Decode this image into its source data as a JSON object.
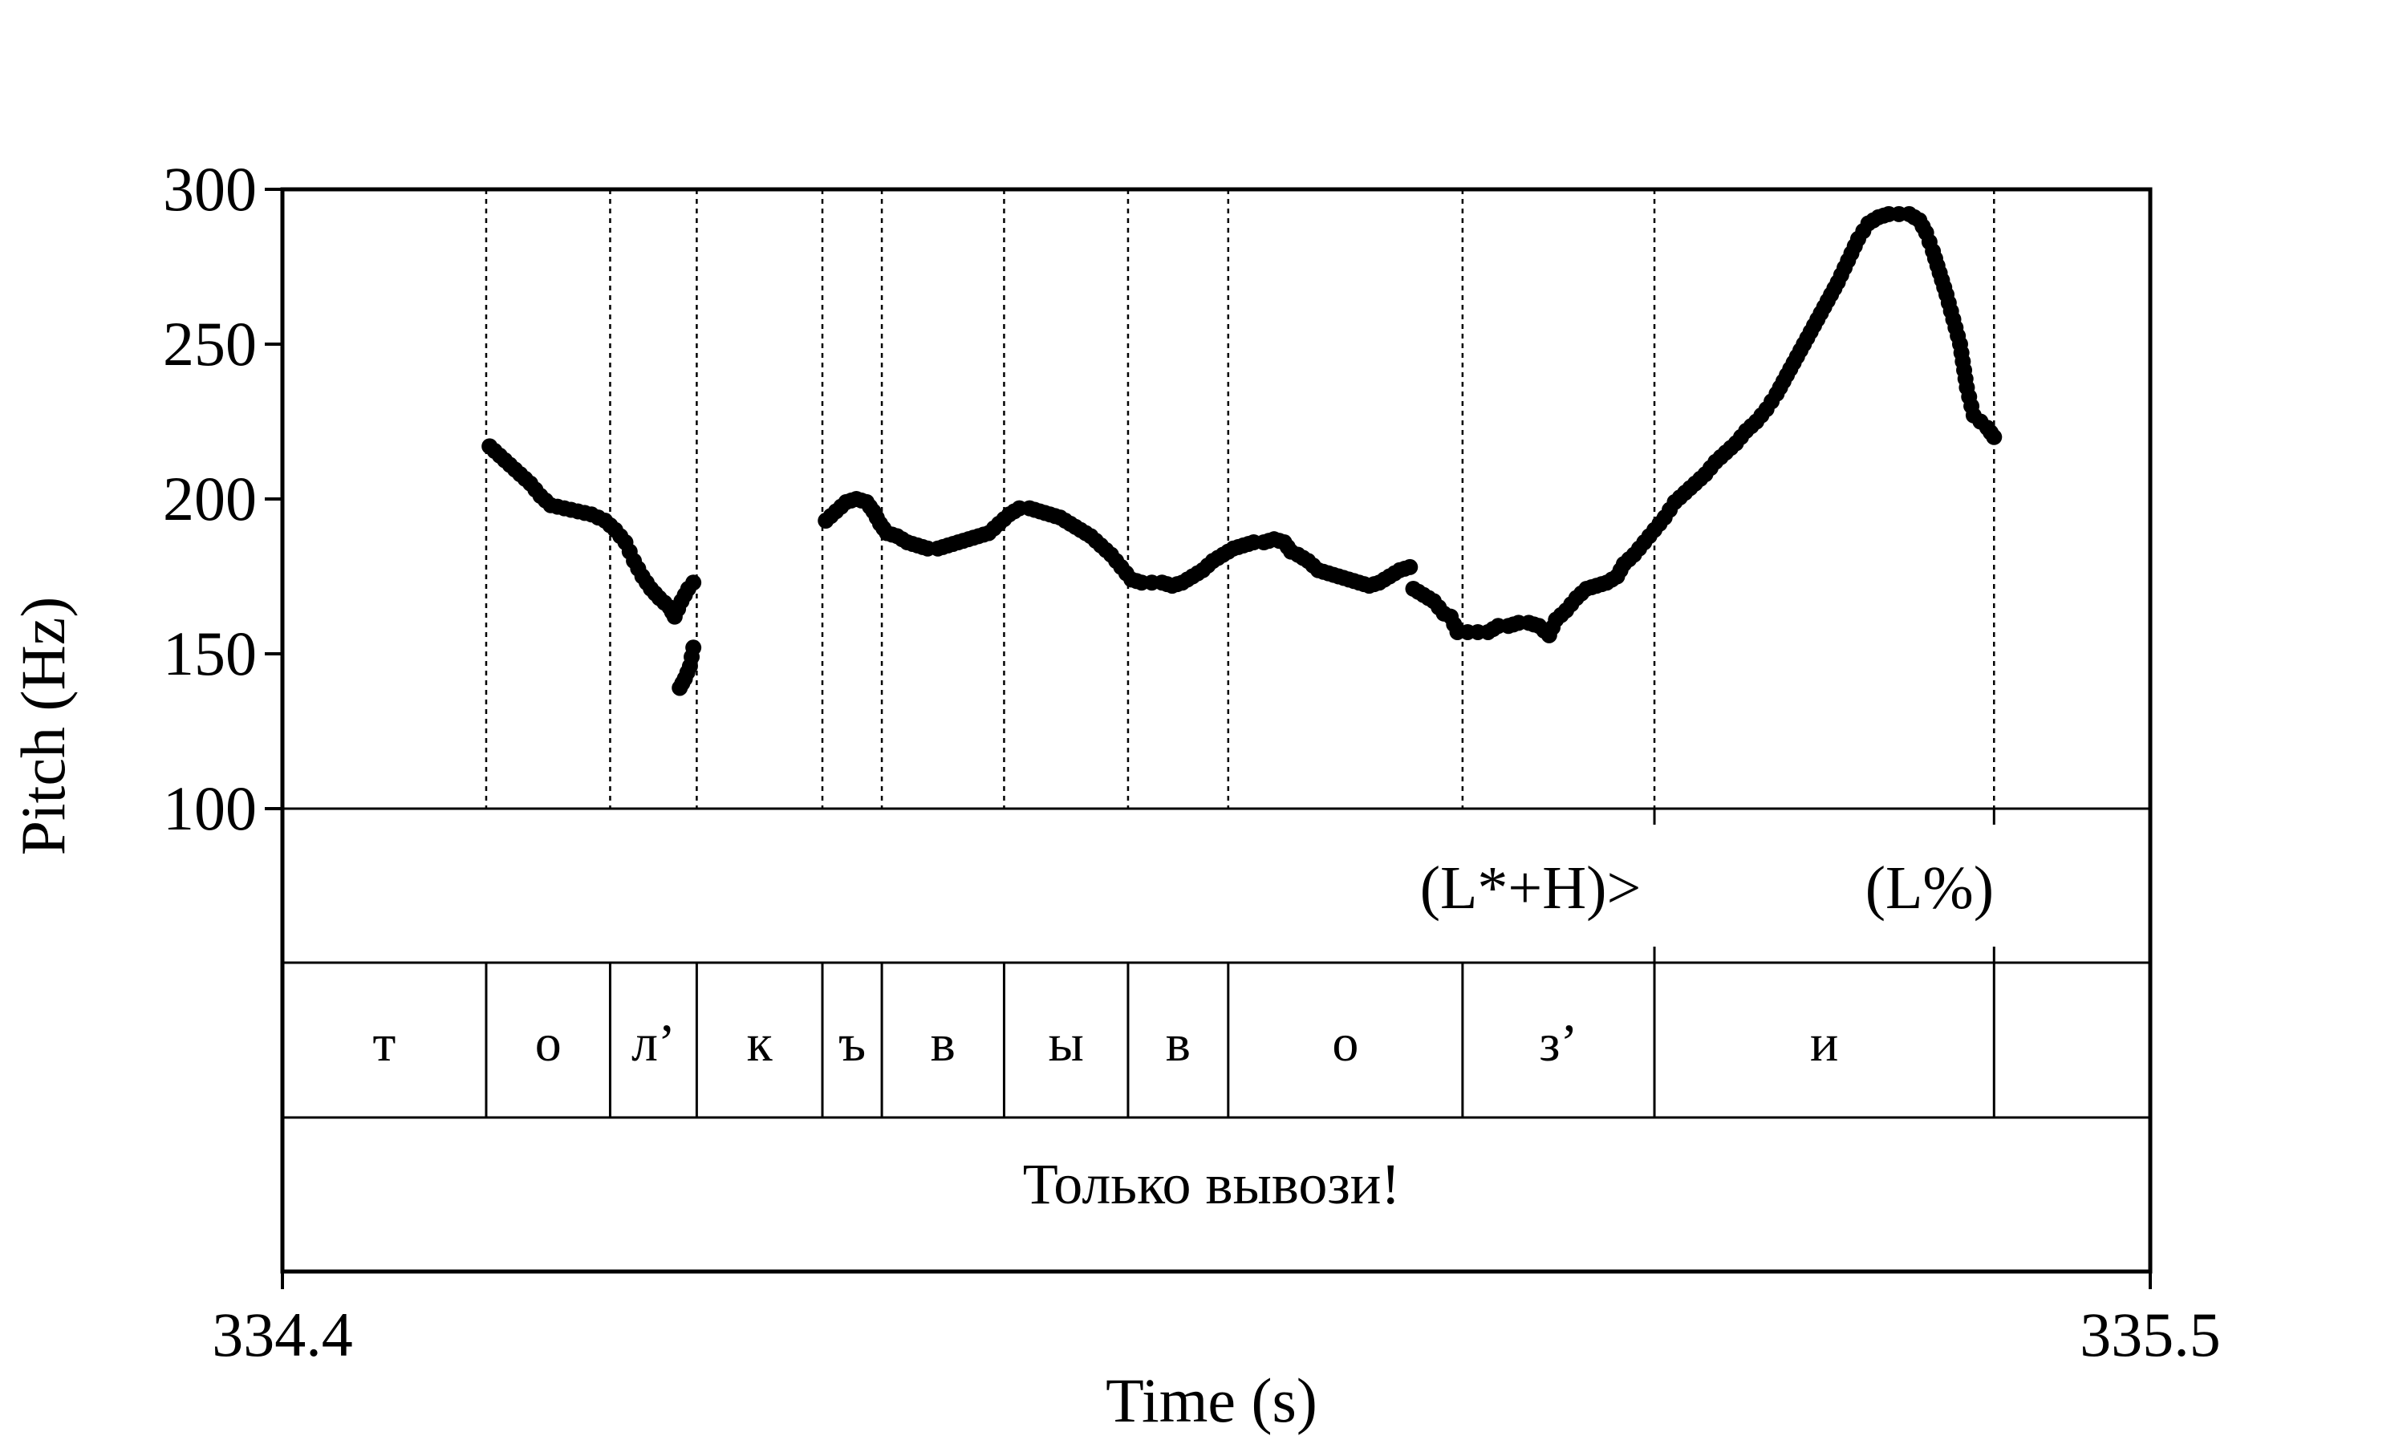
{
  "chart_data": {
    "type": "scatter",
    "xlabel": "Time (s)",
    "ylabel": "Pitch (Hz)",
    "xlim": [
      334.4,
      335.5
    ],
    "ylim": [
      100,
      300
    ],
    "x_tick_labels": [
      "334.4",
      "335.5"
    ],
    "y_ticks": [
      100,
      150,
      200,
      250,
      300
    ],
    "grid": false,
    "marker_color": "#000000",
    "boundaries": [
      334.52,
      334.593,
      334.644,
      334.718,
      334.753,
      334.825,
      334.898,
      334.957,
      335.095,
      335.208,
      335.408
    ],
    "segments": [
      {
        "label": "т",
        "start": 334.4,
        "end": 334.52
      },
      {
        "label": "о",
        "start": 334.52,
        "end": 334.593
      },
      {
        "label": "л’",
        "start": 334.593,
        "end": 334.644
      },
      {
        "label": "к",
        "start": 334.644,
        "end": 334.718
      },
      {
        "label": "ъ",
        "start": 334.718,
        "end": 334.753
      },
      {
        "label": "в",
        "start": 334.753,
        "end": 334.825
      },
      {
        "label": "ы",
        "start": 334.825,
        "end": 334.898
      },
      {
        "label": "в",
        "start": 334.898,
        "end": 334.957
      },
      {
        "label": "о",
        "start": 334.957,
        "end": 335.095
      },
      {
        "label": "з’",
        "start": 335.095,
        "end": 335.208
      },
      {
        "label": "и",
        "start": 335.208,
        "end": 335.408
      }
    ],
    "tones": [
      {
        "label": "(L*+H)>",
        "time": 335.208,
        "center": 335.135
      },
      {
        "label": "(L%)",
        "time": 335.408,
        "center": 335.37
      }
    ],
    "utterance": "Только вывози!",
    "pitch_contours": [
      [
        [
          334.522,
          217
        ],
        [
          334.528,
          214
        ],
        [
          334.534,
          211
        ],
        [
          334.54,
          208
        ],
        [
          334.546,
          205
        ],
        [
          334.552,
          201
        ],
        [
          334.558,
          198
        ],
        [
          334.566,
          197
        ],
        [
          334.574,
          196
        ],
        [
          334.582,
          195
        ],
        [
          334.59,
          193
        ],
        [
          334.596,
          190
        ],
        [
          334.602,
          186
        ],
        [
          334.607,
          180
        ],
        [
          334.612,
          175
        ],
        [
          334.617,
          171
        ],
        [
          334.622,
          168
        ],
        [
          334.628,
          165
        ],
        [
          334.631,
          162
        ],
        [
          334.635,
          167
        ],
        [
          334.639,
          171
        ],
        [
          334.642,
          173
        ]
      ],
      [
        [
          334.634,
          139
        ],
        [
          334.637,
          142
        ],
        [
          334.64,
          146
        ],
        [
          334.642,
          152
        ]
      ],
      [
        [
          334.72,
          193
        ],
        [
          334.726,
          196
        ],
        [
          334.732,
          199
        ],
        [
          334.738,
          200
        ],
        [
          334.744,
          199
        ],
        [
          334.748,
          196
        ],
        [
          334.752,
          192
        ],
        [
          334.756,
          189
        ],
        [
          334.762,
          188
        ],
        [
          334.768,
          186
        ],
        [
          334.774,
          185
        ],
        [
          334.78,
          184
        ],
        [
          334.786,
          184
        ],
        [
          334.792,
          185
        ],
        [
          334.798,
          186
        ],
        [
          334.804,
          187
        ],
        [
          334.81,
          188
        ],
        [
          334.816,
          189
        ],
        [
          334.822,
          192
        ],
        [
          334.828,
          195
        ],
        [
          334.834,
          197
        ],
        [
          334.84,
          197
        ],
        [
          334.846,
          196
        ],
        [
          334.852,
          195
        ],
        [
          334.858,
          194
        ],
        [
          334.864,
          192
        ],
        [
          334.87,
          190
        ],
        [
          334.876,
          188
        ],
        [
          334.882,
          185
        ],
        [
          334.888,
          182
        ],
        [
          334.894,
          178
        ],
        [
          334.9,
          174
        ],
        [
          334.906,
          173
        ],
        [
          334.912,
          173
        ],
        [
          334.918,
          173
        ],
        [
          334.924,
          172
        ],
        [
          334.93,
          173
        ],
        [
          334.936,
          175
        ],
        [
          334.942,
          177
        ],
        [
          334.948,
          180
        ],
        [
          334.954,
          182
        ],
        [
          334.96,
          184
        ],
        [
          334.966,
          185
        ],
        [
          334.972,
          186
        ],
        [
          334.978,
          186
        ],
        [
          334.984,
          187
        ],
        [
          334.99,
          186
        ],
        [
          334.994,
          183
        ],
        [
          334.998,
          182
        ],
        [
          335.004,
          180
        ],
        [
          335.01,
          177
        ],
        [
          335.016,
          176
        ],
        [
          335.022,
          175
        ],
        [
          335.028,
          174
        ],
        [
          335.034,
          173
        ],
        [
          335.04,
          172
        ],
        [
          335.046,
          173
        ],
        [
          335.052,
          175
        ],
        [
          335.058,
          177
        ],
        [
          335.064,
          178
        ]
      ],
      [
        [
          335.066,
          171
        ],
        [
          335.072,
          169
        ],
        [
          335.078,
          167
        ],
        [
          335.084,
          163
        ],
        [
          335.088,
          162
        ],
        [
          335.092,
          157
        ],
        [
          335.098,
          157
        ],
        [
          335.104,
          157
        ],
        [
          335.11,
          157
        ],
        [
          335.116,
          159
        ],
        [
          335.122,
          159
        ],
        [
          335.128,
          160
        ],
        [
          335.134,
          160
        ],
        [
          335.14,
          159
        ],
        [
          335.146,
          156
        ],
        [
          335.15,
          161
        ],
        [
          335.156,
          164
        ],
        [
          335.162,
          168
        ],
        [
          335.168,
          171
        ],
        [
          335.174,
          172
        ],
        [
          335.18,
          173
        ],
        [
          335.186,
          175
        ],
        [
          335.19,
          179
        ],
        [
          335.196,
          182
        ],
        [
          335.202,
          186
        ],
        [
          335.208,
          190
        ],
        [
          335.214,
          194
        ],
        [
          335.22,
          199
        ],
        [
          335.226,
          202
        ],
        [
          335.232,
          205
        ],
        [
          335.238,
          208
        ],
        [
          335.244,
          212
        ],
        [
          335.25,
          215
        ],
        [
          335.256,
          218
        ],
        [
          335.262,
          222
        ],
        [
          335.268,
          225
        ],
        [
          335.274,
          229
        ],
        [
          335.28,
          234
        ],
        [
          335.286,
          240
        ],
        [
          335.292,
          246
        ],
        [
          335.298,
          252
        ],
        [
          335.304,
          258
        ],
        [
          335.31,
          264
        ],
        [
          335.316,
          270
        ],
        [
          335.322,
          277
        ],
        [
          335.328,
          284
        ],
        [
          335.334,
          289
        ],
        [
          335.34,
          291
        ],
        [
          335.346,
          292
        ],
        [
          335.352,
          292
        ],
        [
          335.358,
          292
        ],
        [
          335.364,
          290
        ],
        [
          335.368,
          286
        ],
        [
          335.372,
          280
        ],
        [
          335.376,
          273
        ],
        [
          335.38,
          266
        ],
        [
          335.384,
          258
        ],
        [
          335.388,
          250
        ],
        [
          335.392,
          236
        ],
        [
          335.396,
          227
        ],
        [
          335.4,
          225
        ],
        [
          335.404,
          223
        ],
        [
          335.408,
          220
        ]
      ]
    ]
  }
}
